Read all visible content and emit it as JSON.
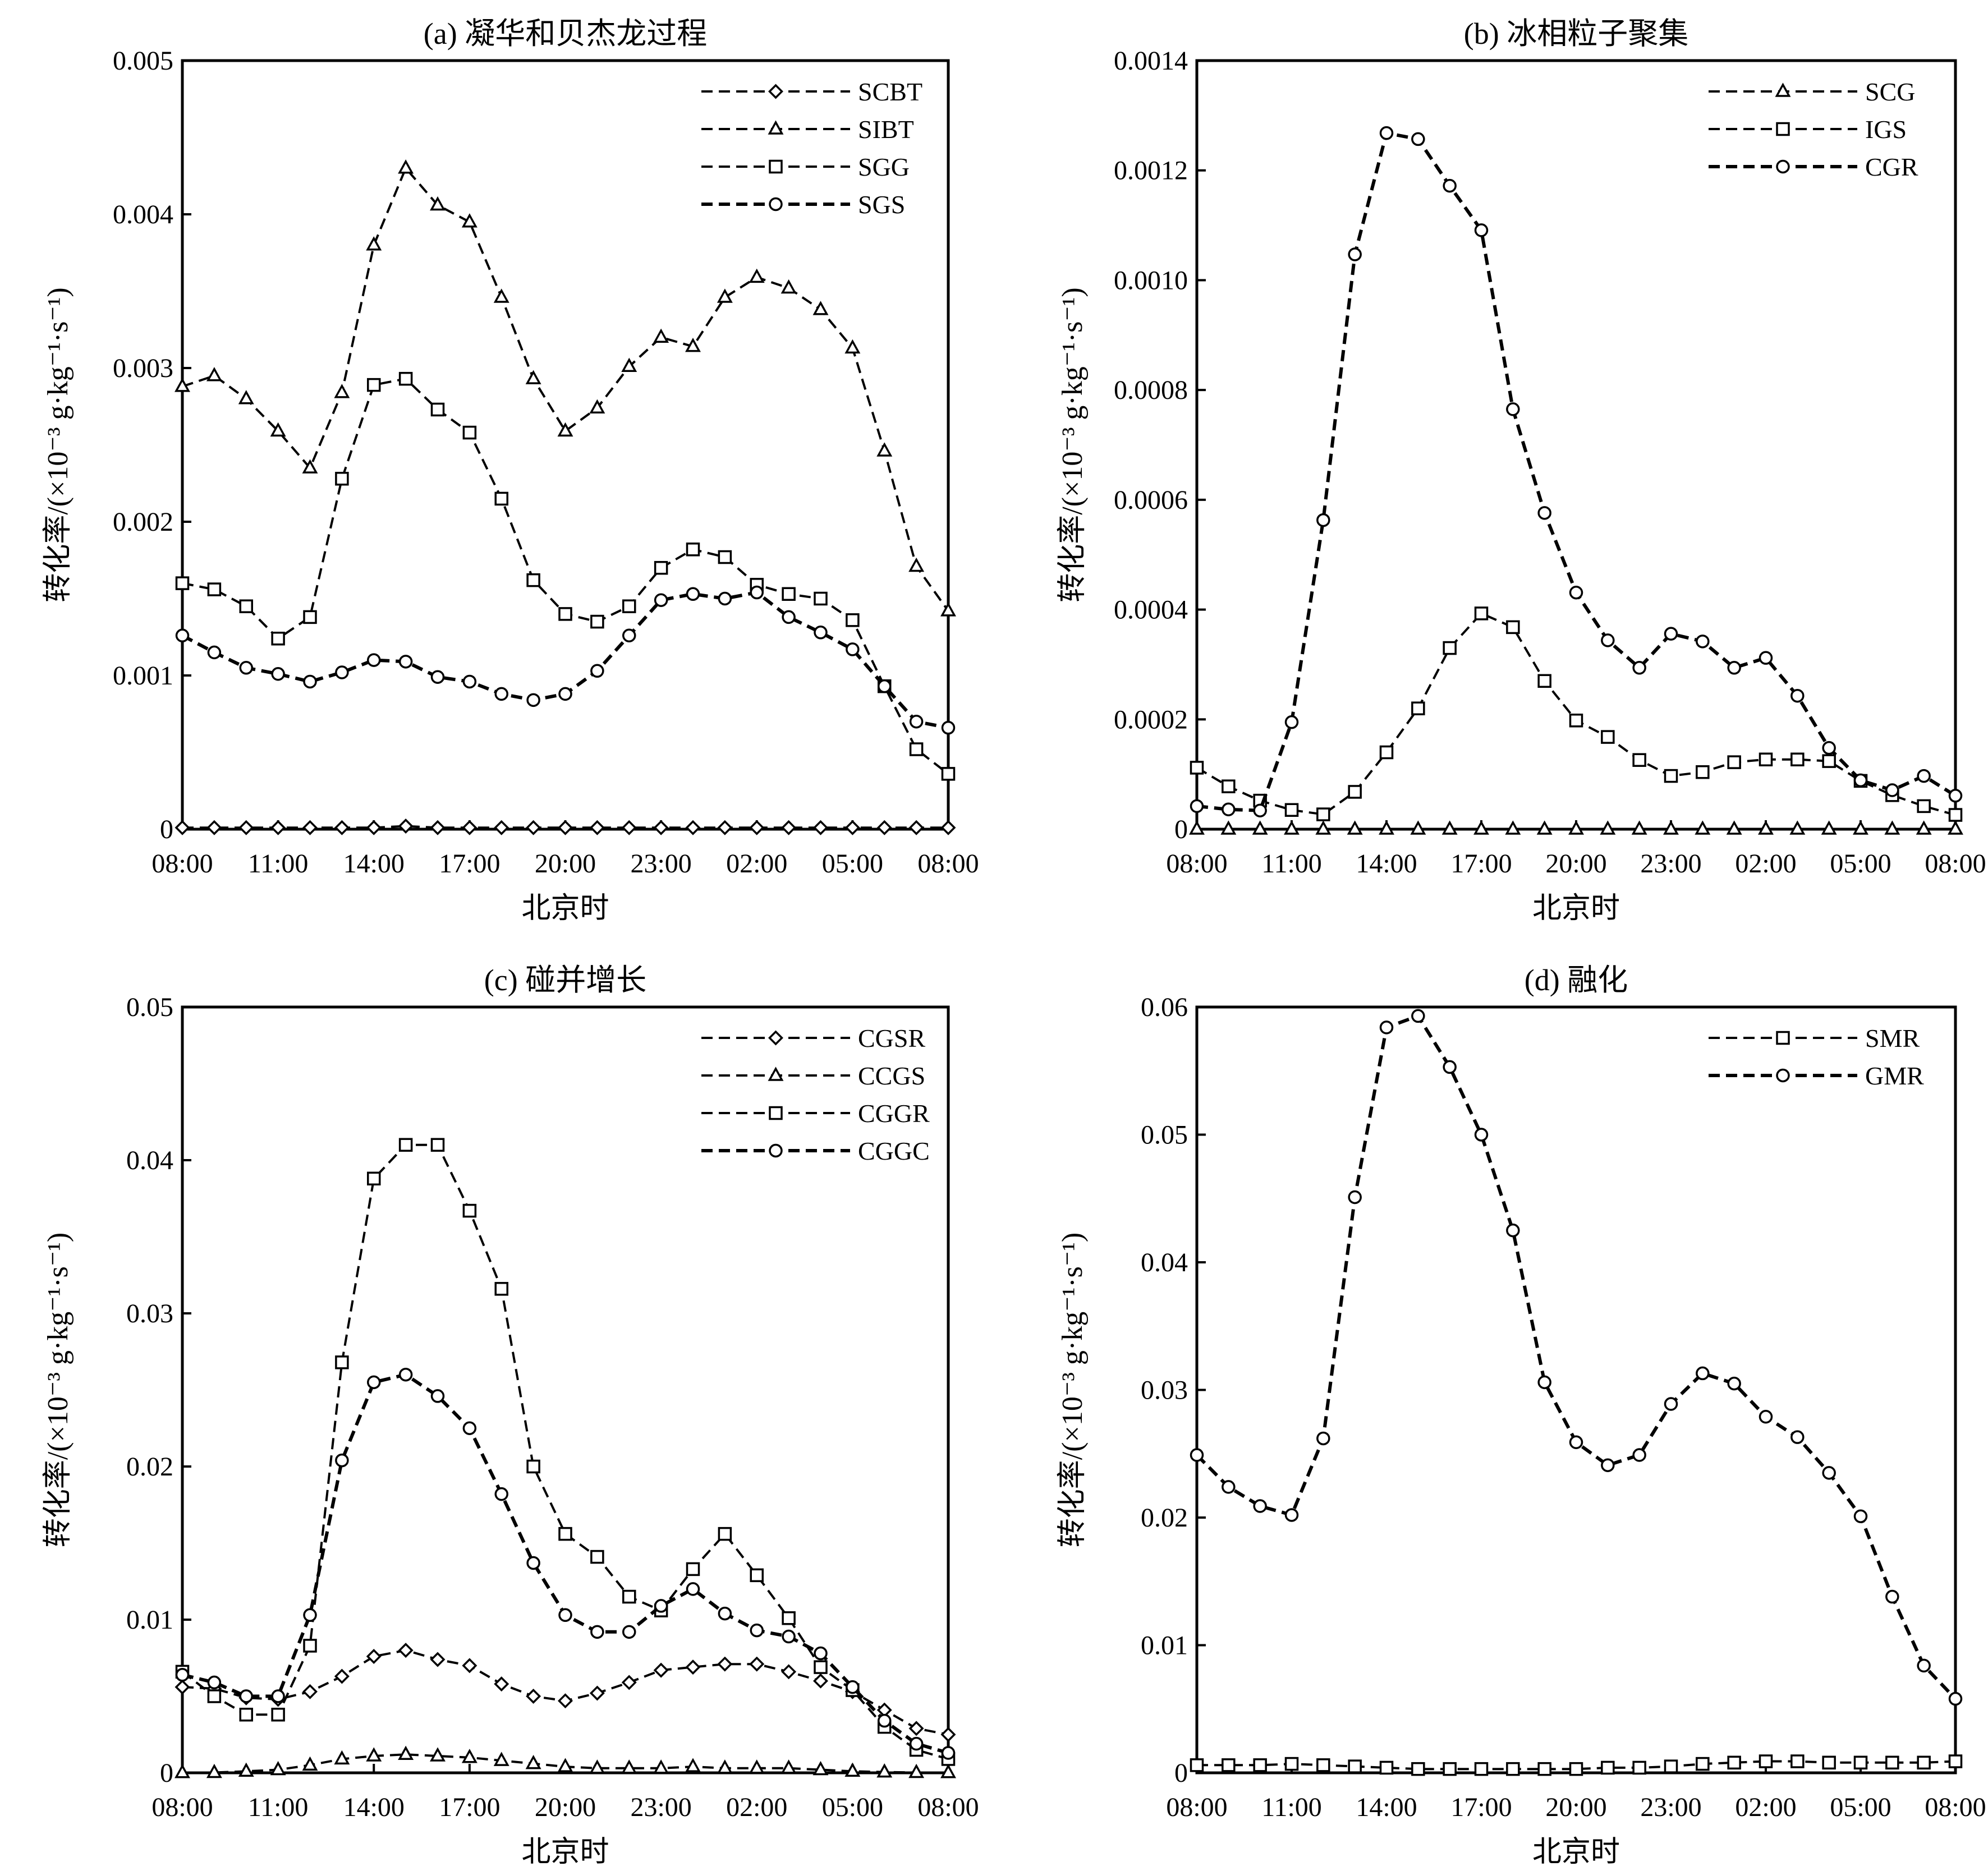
{
  "chart_data": [
    {
      "type": "line",
      "title": "(a) 凝华和贝杰龙过程",
      "xlabel": "北京时",
      "ylabel": "转化率/(×10⁻³ g·kg⁻¹·s⁻¹)",
      "x_tick_labels": [
        "08:00",
        "11:00",
        "14:00",
        "17:00",
        "20:00",
        "23:00",
        "02:00",
        "05:00",
        "08:00"
      ],
      "y_ticks": [
        "0",
        "0.001",
        "0.002",
        "0.003",
        "0.004",
        "0.005"
      ],
      "ylim": [
        0,
        0.005
      ],
      "legend_position": "top-right",
      "series": [
        {
          "name": "SCBT",
          "marker": "diamond",
          "values": [
            1e-05,
            1e-05,
            1e-05,
            1e-05,
            1e-05,
            1e-05,
            1e-05,
            2e-05,
            1e-05,
            1e-05,
            1e-05,
            1e-05,
            1e-05,
            1e-05,
            1e-05,
            1e-05,
            1e-05,
            1e-05,
            1e-05,
            1e-05,
            1e-05,
            1e-05,
            1e-05,
            1e-05,
            1e-05
          ]
        },
        {
          "name": "SIBT",
          "marker": "triangle",
          "values": [
            0.00288,
            0.00295,
            0.0028,
            0.00259,
            0.00235,
            0.00284,
            0.0038,
            0.0043,
            0.00406,
            0.00395,
            0.00346,
            0.00293,
            0.00259,
            0.00274,
            0.00301,
            0.0032,
            0.00314,
            0.00346,
            0.00359,
            0.00352,
            0.00338,
            0.00313,
            0.00246,
            0.00171,
            0.00142
          ]
        },
        {
          "name": "SGG",
          "marker": "square",
          "values": [
            0.0016,
            0.00156,
            0.00145,
            0.00124,
            0.00138,
            0.00228,
            0.00289,
            0.00293,
            0.00273,
            0.00258,
            0.00215,
            0.00162,
            0.0014,
            0.00135,
            0.00145,
            0.0017,
            0.00182,
            0.00177,
            0.00159,
            0.00153,
            0.0015,
            0.00136,
            0.00093,
            0.00052,
            0.00036
          ]
        },
        {
          "name": "SGS",
          "marker": "circle",
          "values": [
            0.00126,
            0.00115,
            0.00105,
            0.00101,
            0.00096,
            0.00102,
            0.0011,
            0.00109,
            0.00099,
            0.00096,
            0.00088,
            0.00084,
            0.00088,
            0.00103,
            0.00126,
            0.00149,
            0.00153,
            0.0015,
            0.00154,
            0.00138,
            0.00128,
            0.00117,
            0.00093,
            0.0007,
            0.00066
          ]
        }
      ]
    },
    {
      "type": "line",
      "title": "(b) 冰相粒子聚集",
      "xlabel": "北京时",
      "ylabel": "转化率/(×10⁻³ g·kg⁻¹·s⁻¹)",
      "x_tick_labels": [
        "08:00",
        "11:00",
        "14:00",
        "17:00",
        "20:00",
        "23:00",
        "02:00",
        "05:00",
        "08:00"
      ],
      "y_ticks": [
        "0",
        "0.0002",
        "0.0004",
        "0.0006",
        "0.0008",
        "0.0010",
        "0.0012",
        "0.0014"
      ],
      "ylim": [
        0,
        0.0014
      ],
      "legend_position": "top-right",
      "series": [
        {
          "name": "SCG",
          "marker": "triangle",
          "values": [
            0,
            0,
            0,
            0,
            0,
            0,
            0,
            0,
            0,
            0,
            0,
            0,
            0,
            0,
            0,
            0,
            0,
            0,
            0,
            0,
            0,
            0,
            0,
            0,
            0
          ]
        },
        {
          "name": "IGS",
          "marker": "square",
          "values": [
            0.000112,
            7.8e-05,
            5.2e-05,
            3.5e-05,
            2.7e-05,
            6.8e-05,
            0.00014,
            0.00022,
            0.00033,
            0.000393,
            0.000368,
            0.00027,
            0.000198,
            0.000168,
            0.000126,
            9.7e-05,
            0.000104,
            0.000122,
            0.000127,
            0.000127,
            0.000124,
            8.8e-05,
            6.2e-05,
            4.2e-05,
            2.6e-05
          ]
        },
        {
          "name": "CGR",
          "marker": "circle",
          "values": [
            4.2e-05,
            3.6e-05,
            3.4e-05,
            0.000195,
            0.000563,
            0.001047,
            0.001268,
            0.001257,
            0.001172,
            0.001091,
            0.000765,
            0.000576,
            0.000431,
            0.000344,
            0.000294,
            0.000356,
            0.000342,
            0.000294,
            0.000312,
            0.000243,
            0.000148,
            8.9e-05,
            7.1e-05,
            9.7e-05,
            6.1e-05
          ]
        }
      ]
    },
    {
      "type": "line",
      "title": "(c) 碰并增长",
      "xlabel": "北京时",
      "ylabel": "转化率/(×10⁻³ g·kg⁻¹·s⁻¹)",
      "x_tick_labels": [
        "08:00",
        "11:00",
        "14:00",
        "17:00",
        "20:00",
        "23:00",
        "02:00",
        "05:00",
        "08:00"
      ],
      "y_ticks": [
        "0",
        "0.01",
        "0.02",
        "0.03",
        "0.04",
        "0.05"
      ],
      "ylim": [
        0,
        0.05
      ],
      "legend_position": "top-right",
      "series": [
        {
          "name": "CGSR",
          "marker": "diamond",
          "values": [
            0.0056,
            0.0055,
            0.0049,
            0.0048,
            0.0053,
            0.0063,
            0.0076,
            0.008,
            0.0074,
            0.007,
            0.0058,
            0.005,
            0.0047,
            0.0052,
            0.0059,
            0.0067,
            0.0069,
            0.0071,
            0.0071,
            0.0066,
            0.006,
            0.0053,
            0.0041,
            0.0029,
            0.0025
          ]
        },
        {
          "name": "CCGS",
          "marker": "triangle",
          "values": [
            1e-05,
            2e-05,
            0.0001,
            0.0002,
            0.0005,
            0.0009,
            0.0011,
            0.0012,
            0.0011,
            0.001,
            0.0008,
            0.0006,
            0.0004,
            0.0003,
            0.0003,
            0.0003,
            0.0004,
            0.0003,
            0.0003,
            0.0003,
            0.0002,
            0.0001,
            5e-05,
            2e-05,
            1e-05
          ]
        },
        {
          "name": "CGGR",
          "marker": "square",
          "values": [
            0.0066,
            0.005,
            0.0038,
            0.0038,
            0.0083,
            0.0268,
            0.0388,
            0.041,
            0.041,
            0.0367,
            0.0316,
            0.02,
            0.0156,
            0.0141,
            0.0115,
            0.0106,
            0.0133,
            0.0156,
            0.0129,
            0.0101,
            0.0069,
            0.0054,
            0.003,
            0.0015,
            0.0009
          ]
        },
        {
          "name": "CGGC",
          "marker": "circle",
          "values": [
            0.0064,
            0.0059,
            0.005,
            0.005,
            0.0103,
            0.0204,
            0.0255,
            0.026,
            0.0246,
            0.0225,
            0.0182,
            0.0137,
            0.0103,
            0.0092,
            0.0092,
            0.0109,
            0.012,
            0.0104,
            0.0093,
            0.0089,
            0.0078,
            0.0056,
            0.0034,
            0.0019,
            0.0013
          ]
        }
      ]
    },
    {
      "type": "line",
      "title": "(d) 融化",
      "xlabel": "北京时",
      "ylabel": "转化率/(×10⁻³ g·kg⁻¹·s⁻¹)",
      "x_tick_labels": [
        "08:00",
        "11:00",
        "14:00",
        "17:00",
        "20:00",
        "23:00",
        "02:00",
        "05:00",
        "08:00"
      ],
      "y_ticks": [
        "0",
        "0.01",
        "0.02",
        "0.03",
        "0.04",
        "0.05",
        "0.06"
      ],
      "ylim": [
        0,
        0.06
      ],
      "legend_position": "top-right",
      "series": [
        {
          "name": "SMR",
          "marker": "square",
          "values": [
            0.0006,
            0.0006,
            0.0006,
            0.0007,
            0.0006,
            0.0005,
            0.0004,
            0.0003,
            0.0003,
            0.0003,
            0.0003,
            0.0003,
            0.0003,
            0.0004,
            0.0004,
            0.0005,
            0.0007,
            0.0008,
            0.0009,
            0.0009,
            0.0008,
            0.0008,
            0.0008,
            0.0008,
            0.0009
          ]
        },
        {
          "name": "GMR",
          "marker": "circle",
          "values": [
            0.0249,
            0.0224,
            0.0209,
            0.0202,
            0.0262,
            0.0451,
            0.0584,
            0.0593,
            0.0553,
            0.05,
            0.0425,
            0.0306,
            0.0259,
            0.0241,
            0.0249,
            0.0289,
            0.0313,
            0.0305,
            0.0279,
            0.0263,
            0.0235,
            0.0201,
            0.0138,
            0.0084,
            0.0058
          ]
        }
      ]
    }
  ]
}
